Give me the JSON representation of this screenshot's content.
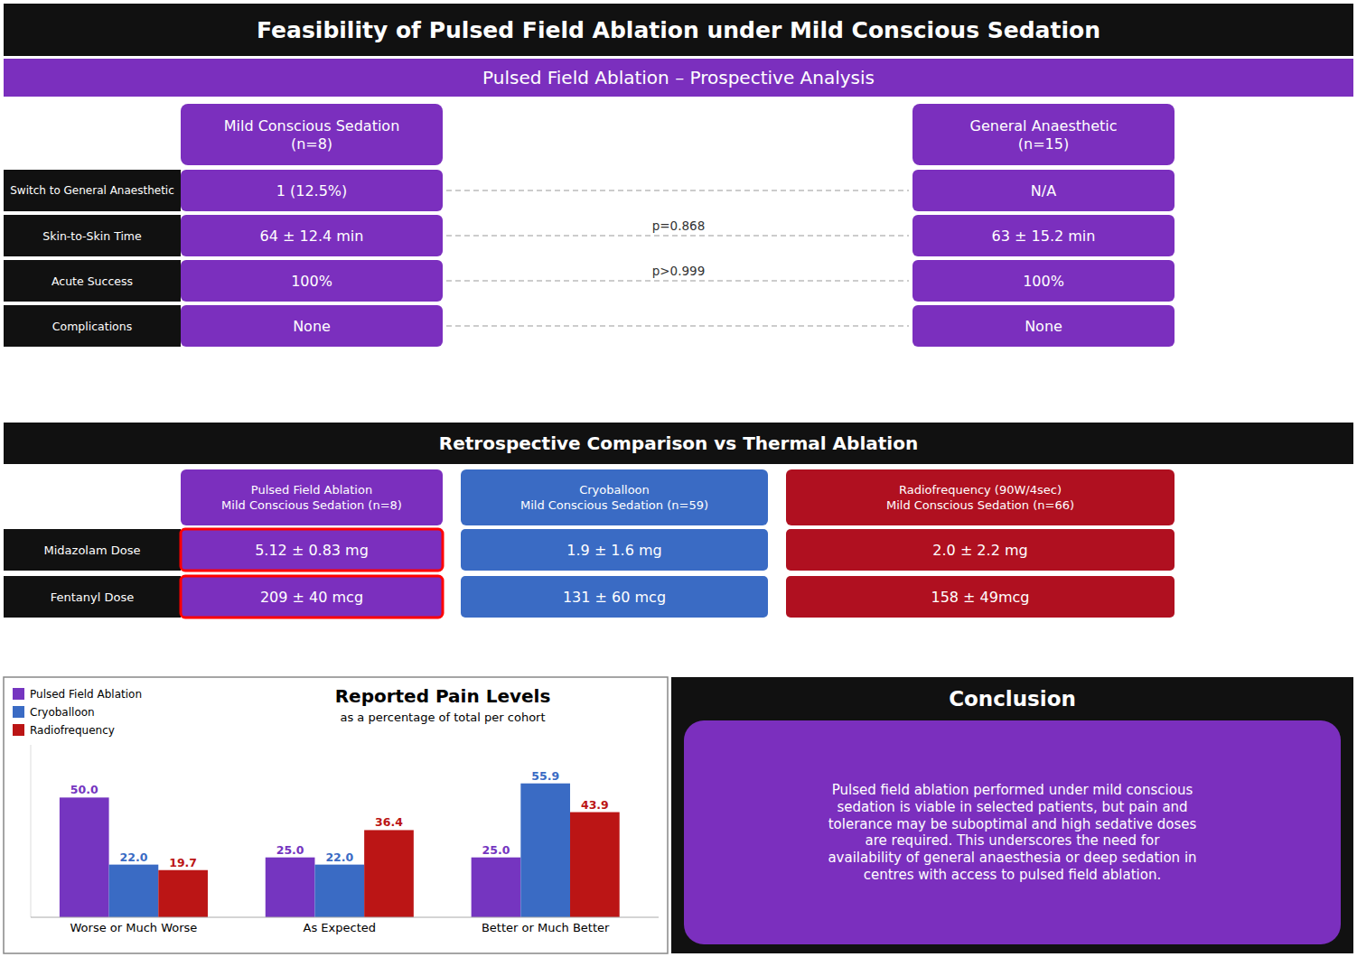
{
  "chart_data": {
    "type": "bar",
    "title": "Reported Pain Levels",
    "subtitle": "as a percentage of total per cohort",
    "categories": [
      "Worse or Much Worse",
      "As Expected",
      "Better or Much Better"
    ],
    "series": [
      {
        "name": "Pulsed Field Ablation",
        "color": "#7535c0",
        "values": [
          50.0,
          25.0,
          25.0
        ],
        "value_labels": [
          "50.0",
          "25.0",
          "25.0"
        ]
      },
      {
        "name": "Cryoballoon",
        "color": "#3a6bc4",
        "values": [
          22.0,
          22.0,
          55.9
        ],
        "value_labels": [
          "22.0",
          "22.0",
          "55.9"
        ]
      },
      {
        "name": "Radiofrequency",
        "color": "#bb1515",
        "values": [
          19.7,
          36.4,
          43.9
        ],
        "value_labels": [
          "19.7",
          "36.4",
          "43.9"
        ]
      }
    ],
    "ylim": [
      0,
      72
    ],
    "grid": false,
    "legend": "upper left",
    "data_labels": true,
    "tick_labels": "x"
  },
  "infographic": {
    "title": "Feasibility of Pulsed Field Ablation under Mild Conscious Sedation",
    "section1_title": "Pulsed Field Ablation – Prospective Analysis",
    "prospective_columns": [
      "Mild Conscious Sedation\n(n=8)",
      "General Anaesthetic\n(n=15)"
    ],
    "rows_prospective": [
      {
        "label": "Switch to General Anaesthetic",
        "values": [
          "1 (12.5%)",
          "N/A"
        ]
      },
      {
        "label": "Skin-to-Skin Time",
        "values": [
          "64 ± 12.4 min",
          "63 ± 15.2 min"
        ],
        "p": "p=0.868"
      },
      {
        "label": "Acute Success",
        "values": [
          "100%",
          "100%"
        ],
        "p": "p>0.999"
      },
      {
        "label": "Complications",
        "values": [
          "None",
          "None"
        ]
      }
    ],
    "section2_title": "Retrospective Comparison vs Thermal Ablation",
    "retrospective_columns": [
      {
        "name": "Pulsed Field Ablation\nMild Conscious Sedation (n=8)",
        "color": "#7b2fbe"
      },
      {
        "name": "Cryoballoon\nMild Conscious Sedation (n=59)",
        "color": "#3a6bc4"
      },
      {
        "name": "Radiofrequency (90W/4sec)\nMild Conscious Sedation (n=66)",
        "color": "#b01020"
      }
    ],
    "rows_retrospective": [
      {
        "label": "Midazolam Dose",
        "values": [
          "5.12 ± 0.83 mg",
          "1.9 ± 1.6 mg",
          "2.0 ± 2.2 mg"
        ]
      },
      {
        "label": "Fentanyl Dose",
        "values": [
          "209 ± 40 mcg",
          "131 ± 60 mcg",
          "158 ± 49mcg"
        ]
      }
    ],
    "conclusion_title": "Conclusion",
    "conclusion_text": "Pulsed field ablation performed under mild conscious\nsedation is viable in selected patients, but pain and\ntolerance may be suboptimal and high sedative doses\nare required.  This underscores the need for\navailability of general anaesthesia or deep sedation in\ncentres with access to pulsed field ablation."
  }
}
